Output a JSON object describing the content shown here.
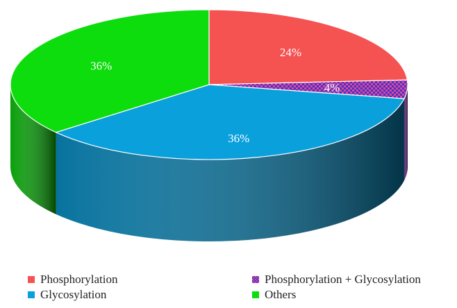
{
  "chart_data": {
    "type": "pie",
    "style": "3d",
    "title": "",
    "slices": [
      {
        "name": "Phosphorylation",
        "value": 24,
        "label": "24%",
        "color": "#f55252",
        "pattern": "none"
      },
      {
        "name": "Phosphorylation + Glycosylation",
        "value": 4,
        "label": "4%",
        "color": "#3b36c8",
        "pattern": "checker",
        "pattern_color": "#e8449a"
      },
      {
        "name": "Glycosylation",
        "value": 36,
        "label": "36%",
        "color": "#0aa0dc",
        "pattern": "none"
      },
      {
        "name": "Others",
        "value": 36,
        "label": "36%",
        "color": "#0ddc0d",
        "pattern": "none"
      }
    ],
    "legend": {
      "placement": "bottom",
      "items": [
        {
          "label": "Phosphorylation",
          "color": "#f55252"
        },
        {
          "label": "Phosphorylation + Glycosylation",
          "color": "#3b36c8"
        },
        {
          "label": "Glycosylation",
          "color": "#0aa0dc"
        },
        {
          "label": "Others",
          "color": "#0ddc0d"
        }
      ]
    }
  }
}
